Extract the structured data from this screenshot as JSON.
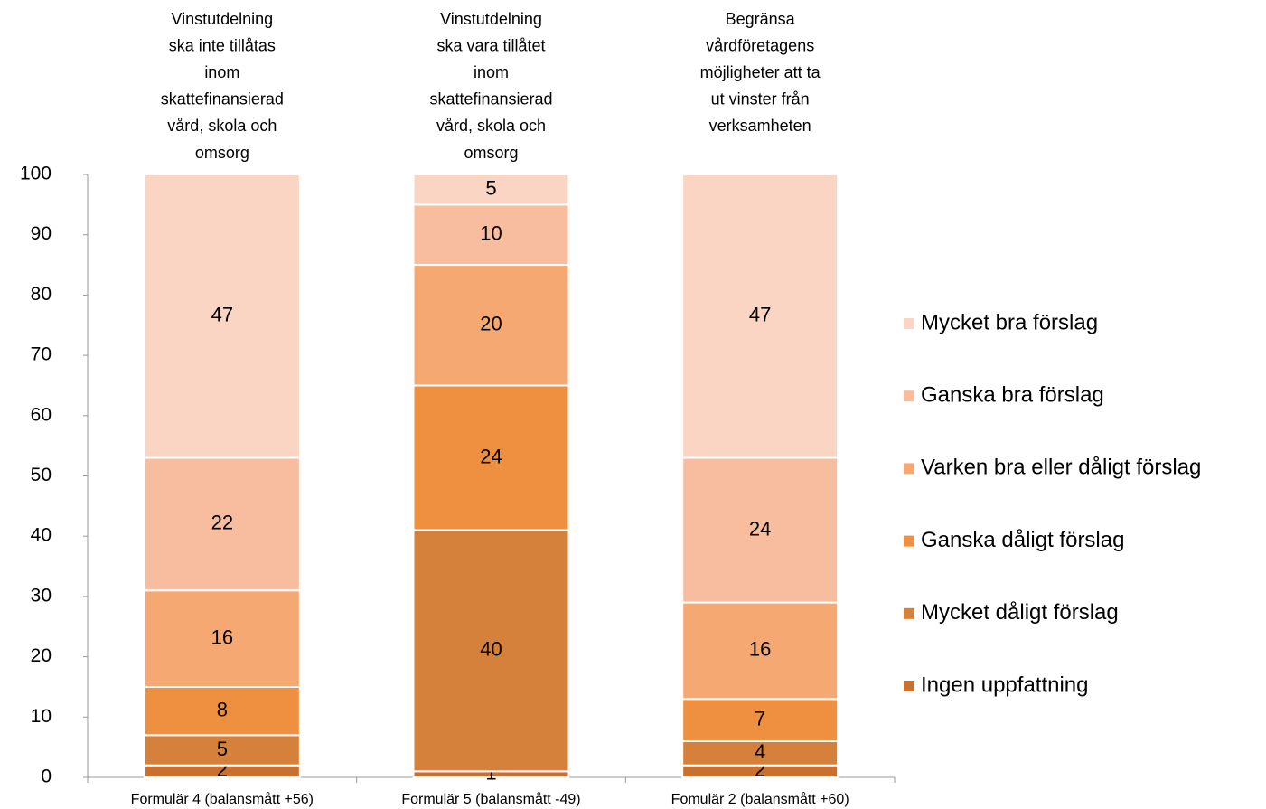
{
  "chart_data": {
    "type": "stacked_bar",
    "column_titles": [
      [
        "Vinstutdelning",
        "ska inte tillåtas",
        "inom",
        "skattefinansierad",
        "vård, skola och",
        "omsorg"
      ],
      [
        "Vinstutdelning",
        "ska vara tillåtet",
        "inom",
        "skattefinansierad",
        "vård, skola och",
        "omsorg"
      ],
      [
        "Begränsa",
        "vårdföretagens",
        "möjligheter att ta",
        "ut vinster från",
        "verksamheten"
      ]
    ],
    "categories": [
      "Formulär 4 (balansmått +56)",
      "Formulär 5 (balansmått -49)",
      "Fomulär 2 (balansmått +60)"
    ],
    "series": [
      {
        "name": "Ingen uppfattning",
        "color": "#c8702f",
        "values": [
          2,
          1,
          2
        ]
      },
      {
        "name": "Mycket dåligt förslag",
        "color": "#d5803b",
        "values": [
          5,
          40,
          4
        ]
      },
      {
        "name": "Ganska dåligt förslag",
        "color": "#ee9040",
        "values": [
          8,
          24,
          7
        ]
      },
      {
        "name": "Varken bra eller dåligt förslag",
        "color": "#f6a872",
        "values": [
          16,
          20,
          16
        ]
      },
      {
        "name": "Ganska bra förslag",
        "color": "#f8bd9f",
        "values": [
          22,
          10,
          24
        ]
      },
      {
        "name": "Mycket bra förslag",
        "color": "#fad5c4",
        "values": [
          47,
          5,
          47
        ]
      }
    ],
    "ylim": [
      0,
      100
    ],
    "yticks": [
      0,
      10,
      20,
      30,
      40,
      50,
      60,
      70,
      80,
      90,
      100
    ],
    "legend": "right"
  }
}
